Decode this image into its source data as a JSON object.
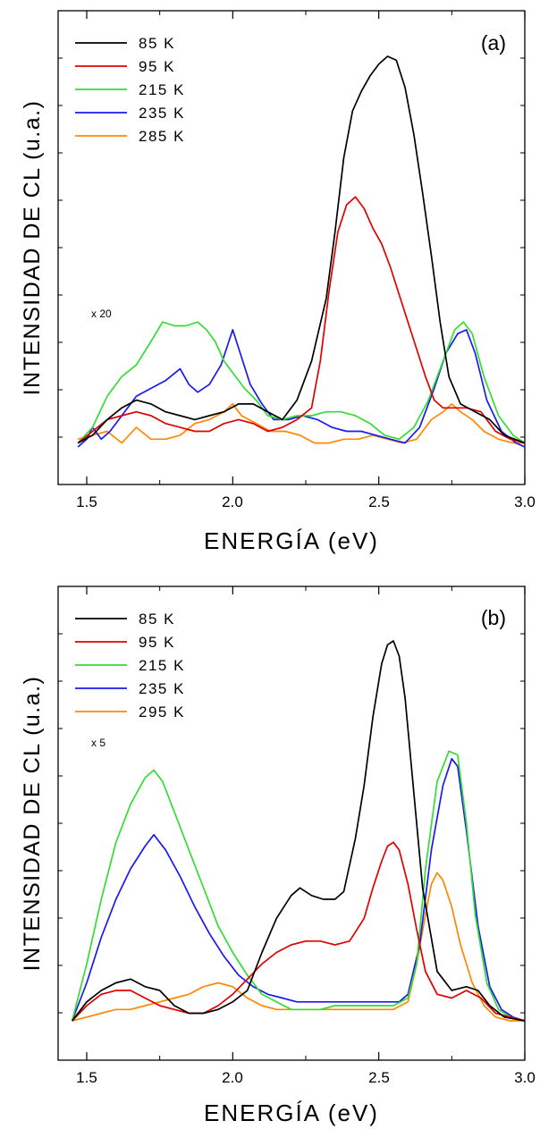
{
  "chart_data": [
    {
      "type": "line",
      "panel_label": "(a)",
      "xlabel": "ENERGÍA (eV)",
      "ylabel": "INTENSIDAD DE CL (u.a.)",
      "xlim": [
        1.45,
        3.0
      ],
      "ylim": [
        0,
        1.0
      ],
      "xticks": [
        "1.5",
        "2.0",
        "2.5",
        "3.0"
      ],
      "annotation": "x 20",
      "legend_position": "top-left",
      "series": [
        {
          "name": "85 K",
          "color": "#000000",
          "x": [
            1.47,
            1.52,
            1.57,
            1.62,
            1.67,
            1.72,
            1.77,
            1.82,
            1.87,
            1.92,
            1.97,
            2.02,
            2.07,
            2.12,
            2.17,
            2.22,
            2.27,
            2.32,
            2.35,
            2.38,
            2.41,
            2.44,
            2.47,
            2.5,
            2.53,
            2.56,
            2.59,
            2.62,
            2.65,
            2.68,
            2.71,
            2.74,
            2.78,
            2.83,
            2.88,
            2.93,
            3.0
          ],
          "y": [
            0.01,
            0.03,
            0.07,
            0.1,
            0.12,
            0.11,
            0.09,
            0.08,
            0.07,
            0.08,
            0.09,
            0.11,
            0.11,
            0.09,
            0.07,
            0.12,
            0.22,
            0.38,
            0.55,
            0.74,
            0.86,
            0.91,
            0.95,
            0.98,
            1.0,
            0.99,
            0.92,
            0.8,
            0.65,
            0.49,
            0.32,
            0.18,
            0.11,
            0.09,
            0.07,
            0.03,
            0.01
          ]
        },
        {
          "name": "95 K",
          "color": "#e00000",
          "x": [
            1.47,
            1.52,
            1.57,
            1.62,
            1.67,
            1.72,
            1.77,
            1.82,
            1.87,
            1.92,
            1.97,
            2.02,
            2.07,
            2.12,
            2.17,
            2.22,
            2.27,
            2.3,
            2.33,
            2.36,
            2.39,
            2.42,
            2.45,
            2.48,
            2.51,
            2.54,
            2.57,
            2.6,
            2.63,
            2.66,
            2.69,
            2.72,
            2.75,
            2.8,
            2.85,
            2.9,
            2.95,
            3.0
          ],
          "y": [
            0.01,
            0.04,
            0.07,
            0.08,
            0.09,
            0.08,
            0.06,
            0.05,
            0.04,
            0.04,
            0.06,
            0.07,
            0.06,
            0.04,
            0.05,
            0.07,
            0.1,
            0.22,
            0.4,
            0.55,
            0.62,
            0.64,
            0.61,
            0.56,
            0.52,
            0.46,
            0.39,
            0.32,
            0.25,
            0.18,
            0.12,
            0.1,
            0.1,
            0.1,
            0.09,
            0.04,
            0.02,
            0.01
          ]
        },
        {
          "name": "215 K",
          "color": "#33dd33",
          "x": [
            1.47,
            1.52,
            1.57,
            1.62,
            1.67,
            1.72,
            1.76,
            1.8,
            1.84,
            1.88,
            1.91,
            1.94,
            1.97,
            2.0,
            2.04,
            2.08,
            2.12,
            2.17,
            2.22,
            2.27,
            2.32,
            2.37,
            2.42,
            2.47,
            2.52,
            2.57,
            2.62,
            2.67,
            2.72,
            2.76,
            2.79,
            2.82,
            2.86,
            2.91,
            2.96,
            3.0
          ],
          "y": [
            0.01,
            0.05,
            0.13,
            0.18,
            0.21,
            0.27,
            0.32,
            0.31,
            0.31,
            0.32,
            0.3,
            0.27,
            0.22,
            0.19,
            0.15,
            0.12,
            0.08,
            0.07,
            0.08,
            0.08,
            0.09,
            0.09,
            0.08,
            0.06,
            0.03,
            0.02,
            0.05,
            0.12,
            0.22,
            0.3,
            0.32,
            0.29,
            0.18,
            0.08,
            0.03,
            0.01
          ]
        },
        {
          "name": "235 K",
          "color": "#1a1aee",
          "x": [
            1.47,
            1.5,
            1.52,
            1.55,
            1.58,
            1.62,
            1.67,
            1.72,
            1.77,
            1.82,
            1.85,
            1.88,
            1.92,
            1.96,
            2.0,
            2.03,
            2.06,
            2.1,
            2.14,
            2.19,
            2.24,
            2.29,
            2.34,
            2.39,
            2.44,
            2.49,
            2.54,
            2.59,
            2.64,
            2.69,
            2.73,
            2.77,
            2.8,
            2.83,
            2.87,
            2.92,
            2.97,
            3.0
          ],
          "y": [
            0.0,
            0.02,
            0.05,
            0.02,
            0.04,
            0.08,
            0.13,
            0.15,
            0.17,
            0.2,
            0.16,
            0.14,
            0.16,
            0.21,
            0.3,
            0.23,
            0.16,
            0.11,
            0.07,
            0.07,
            0.08,
            0.07,
            0.05,
            0.04,
            0.04,
            0.03,
            0.02,
            0.01,
            0.05,
            0.15,
            0.24,
            0.29,
            0.3,
            0.24,
            0.12,
            0.04,
            0.01,
            0.0
          ]
        },
        {
          "name": "285 K",
          "color": "#ff8800",
          "x": [
            1.47,
            1.52,
            1.57,
            1.62,
            1.67,
            1.72,
            1.77,
            1.82,
            1.87,
            1.92,
            1.97,
            2.0,
            2.03,
            2.08,
            2.13,
            2.18,
            2.23,
            2.28,
            2.33,
            2.38,
            2.43,
            2.48,
            2.53,
            2.58,
            2.63,
            2.68,
            2.72,
            2.75,
            2.78,
            2.82,
            2.86,
            2.91,
            2.96,
            3.0
          ],
          "y": [
            0.02,
            0.03,
            0.04,
            0.01,
            0.05,
            0.02,
            0.02,
            0.03,
            0.06,
            0.07,
            0.09,
            0.11,
            0.08,
            0.06,
            0.04,
            0.04,
            0.03,
            0.01,
            0.01,
            0.02,
            0.02,
            0.03,
            0.02,
            0.01,
            0.02,
            0.07,
            0.09,
            0.11,
            0.09,
            0.07,
            0.04,
            0.02,
            0.01,
            0.01
          ]
        }
      ]
    },
    {
      "type": "line",
      "panel_label": "(b)",
      "xlabel": "ENERGÍA (eV)",
      "ylabel": "INTENSIDAD DE CL (u.a.)",
      "xlim": [
        1.45,
        3.0
      ],
      "ylim": [
        0,
        1.0
      ],
      "xticks": [
        "1.5",
        "2.0",
        "2.5",
        "3.0"
      ],
      "annotation": "x 5",
      "legend_position": "top-left",
      "series": [
        {
          "name": "85 K",
          "color": "#000000",
          "x": [
            1.45,
            1.5,
            1.55,
            1.6,
            1.65,
            1.7,
            1.75,
            1.8,
            1.85,
            1.9,
            1.95,
            2.0,
            2.05,
            2.1,
            2.15,
            2.2,
            2.23,
            2.27,
            2.31,
            2.35,
            2.38,
            2.42,
            2.45,
            2.48,
            2.51,
            2.53,
            2.55,
            2.57,
            2.59,
            2.62,
            2.65,
            2.7,
            2.75,
            2.8,
            2.84,
            2.88,
            2.93,
            3.0
          ],
          "y": [
            0.0,
            0.05,
            0.08,
            0.1,
            0.11,
            0.09,
            0.08,
            0.04,
            0.02,
            0.02,
            0.03,
            0.05,
            0.08,
            0.18,
            0.27,
            0.33,
            0.35,
            0.33,
            0.32,
            0.32,
            0.34,
            0.48,
            0.62,
            0.8,
            0.94,
            0.99,
            1.0,
            0.96,
            0.85,
            0.6,
            0.35,
            0.13,
            0.08,
            0.09,
            0.08,
            0.04,
            0.01,
            0.0
          ]
        },
        {
          "name": "95 K",
          "color": "#e00000",
          "x": [
            1.45,
            1.5,
            1.55,
            1.6,
            1.65,
            1.7,
            1.75,
            1.8,
            1.85,
            1.9,
            1.95,
            2.0,
            2.05,
            2.1,
            2.15,
            2.2,
            2.25,
            2.3,
            2.35,
            2.4,
            2.45,
            2.48,
            2.51,
            2.53,
            2.55,
            2.57,
            2.6,
            2.63,
            2.66,
            2.7,
            2.75,
            2.8,
            2.85,
            2.9,
            2.95,
            3.0
          ],
          "y": [
            0.0,
            0.04,
            0.07,
            0.08,
            0.08,
            0.06,
            0.04,
            0.03,
            0.02,
            0.02,
            0.04,
            0.07,
            0.11,
            0.15,
            0.18,
            0.2,
            0.21,
            0.21,
            0.2,
            0.21,
            0.27,
            0.35,
            0.42,
            0.46,
            0.47,
            0.45,
            0.36,
            0.24,
            0.13,
            0.07,
            0.06,
            0.08,
            0.06,
            0.02,
            0.01,
            0.0
          ]
        },
        {
          "name": "215 K",
          "color": "#33dd33",
          "x": [
            1.45,
            1.5,
            1.55,
            1.6,
            1.65,
            1.7,
            1.73,
            1.76,
            1.8,
            1.85,
            1.9,
            1.95,
            2.0,
            2.05,
            2.1,
            2.15,
            2.2,
            2.25,
            2.3,
            2.35,
            2.4,
            2.45,
            2.5,
            2.55,
            2.6,
            2.63,
            2.66,
            2.7,
            2.74,
            2.77,
            2.8,
            2.83,
            2.87,
            2.91,
            2.95,
            3.0
          ],
          "y": [
            0.0,
            0.15,
            0.32,
            0.47,
            0.57,
            0.64,
            0.66,
            0.63,
            0.55,
            0.45,
            0.35,
            0.25,
            0.18,
            0.12,
            0.07,
            0.05,
            0.03,
            0.03,
            0.03,
            0.04,
            0.04,
            0.04,
            0.04,
            0.04,
            0.06,
            0.15,
            0.4,
            0.63,
            0.71,
            0.7,
            0.52,
            0.28,
            0.1,
            0.03,
            0.01,
            0.0
          ]
        },
        {
          "name": "235 K",
          "color": "#1a1aee",
          "x": [
            1.45,
            1.5,
            1.55,
            1.6,
            1.65,
            1.7,
            1.73,
            1.77,
            1.82,
            1.87,
            1.92,
            1.97,
            2.02,
            2.07,
            2.12,
            2.17,
            2.22,
            2.27,
            2.32,
            2.37,
            2.42,
            2.47,
            2.52,
            2.57,
            2.6,
            2.64,
            2.68,
            2.72,
            2.75,
            2.77,
            2.8,
            2.84,
            2.88,
            2.92,
            2.96,
            3.0
          ],
          "y": [
            0.0,
            0.1,
            0.22,
            0.32,
            0.4,
            0.46,
            0.49,
            0.45,
            0.38,
            0.3,
            0.23,
            0.17,
            0.12,
            0.09,
            0.07,
            0.06,
            0.05,
            0.05,
            0.05,
            0.05,
            0.05,
            0.05,
            0.05,
            0.05,
            0.07,
            0.2,
            0.45,
            0.62,
            0.69,
            0.67,
            0.5,
            0.25,
            0.09,
            0.03,
            0.01,
            0.0
          ]
        },
        {
          "name": "295 K",
          "color": "#ff8800",
          "x": [
            1.45,
            1.5,
            1.55,
            1.6,
            1.65,
            1.7,
            1.75,
            1.8,
            1.85,
            1.9,
            1.95,
            2.0,
            2.05,
            2.1,
            2.15,
            2.2,
            2.25,
            2.3,
            2.35,
            2.4,
            2.45,
            2.5,
            2.55,
            2.6,
            2.63,
            2.66,
            2.68,
            2.7,
            2.72,
            2.75,
            2.78,
            2.82,
            2.86,
            2.9,
            2.95,
            3.0
          ],
          "y": [
            0.0,
            0.01,
            0.02,
            0.03,
            0.03,
            0.04,
            0.05,
            0.06,
            0.07,
            0.09,
            0.1,
            0.09,
            0.06,
            0.04,
            0.03,
            0.03,
            0.03,
            0.03,
            0.03,
            0.03,
            0.03,
            0.03,
            0.03,
            0.05,
            0.15,
            0.28,
            0.36,
            0.39,
            0.37,
            0.3,
            0.2,
            0.1,
            0.04,
            0.01,
            0.0,
            0.0
          ]
        }
      ]
    }
  ]
}
